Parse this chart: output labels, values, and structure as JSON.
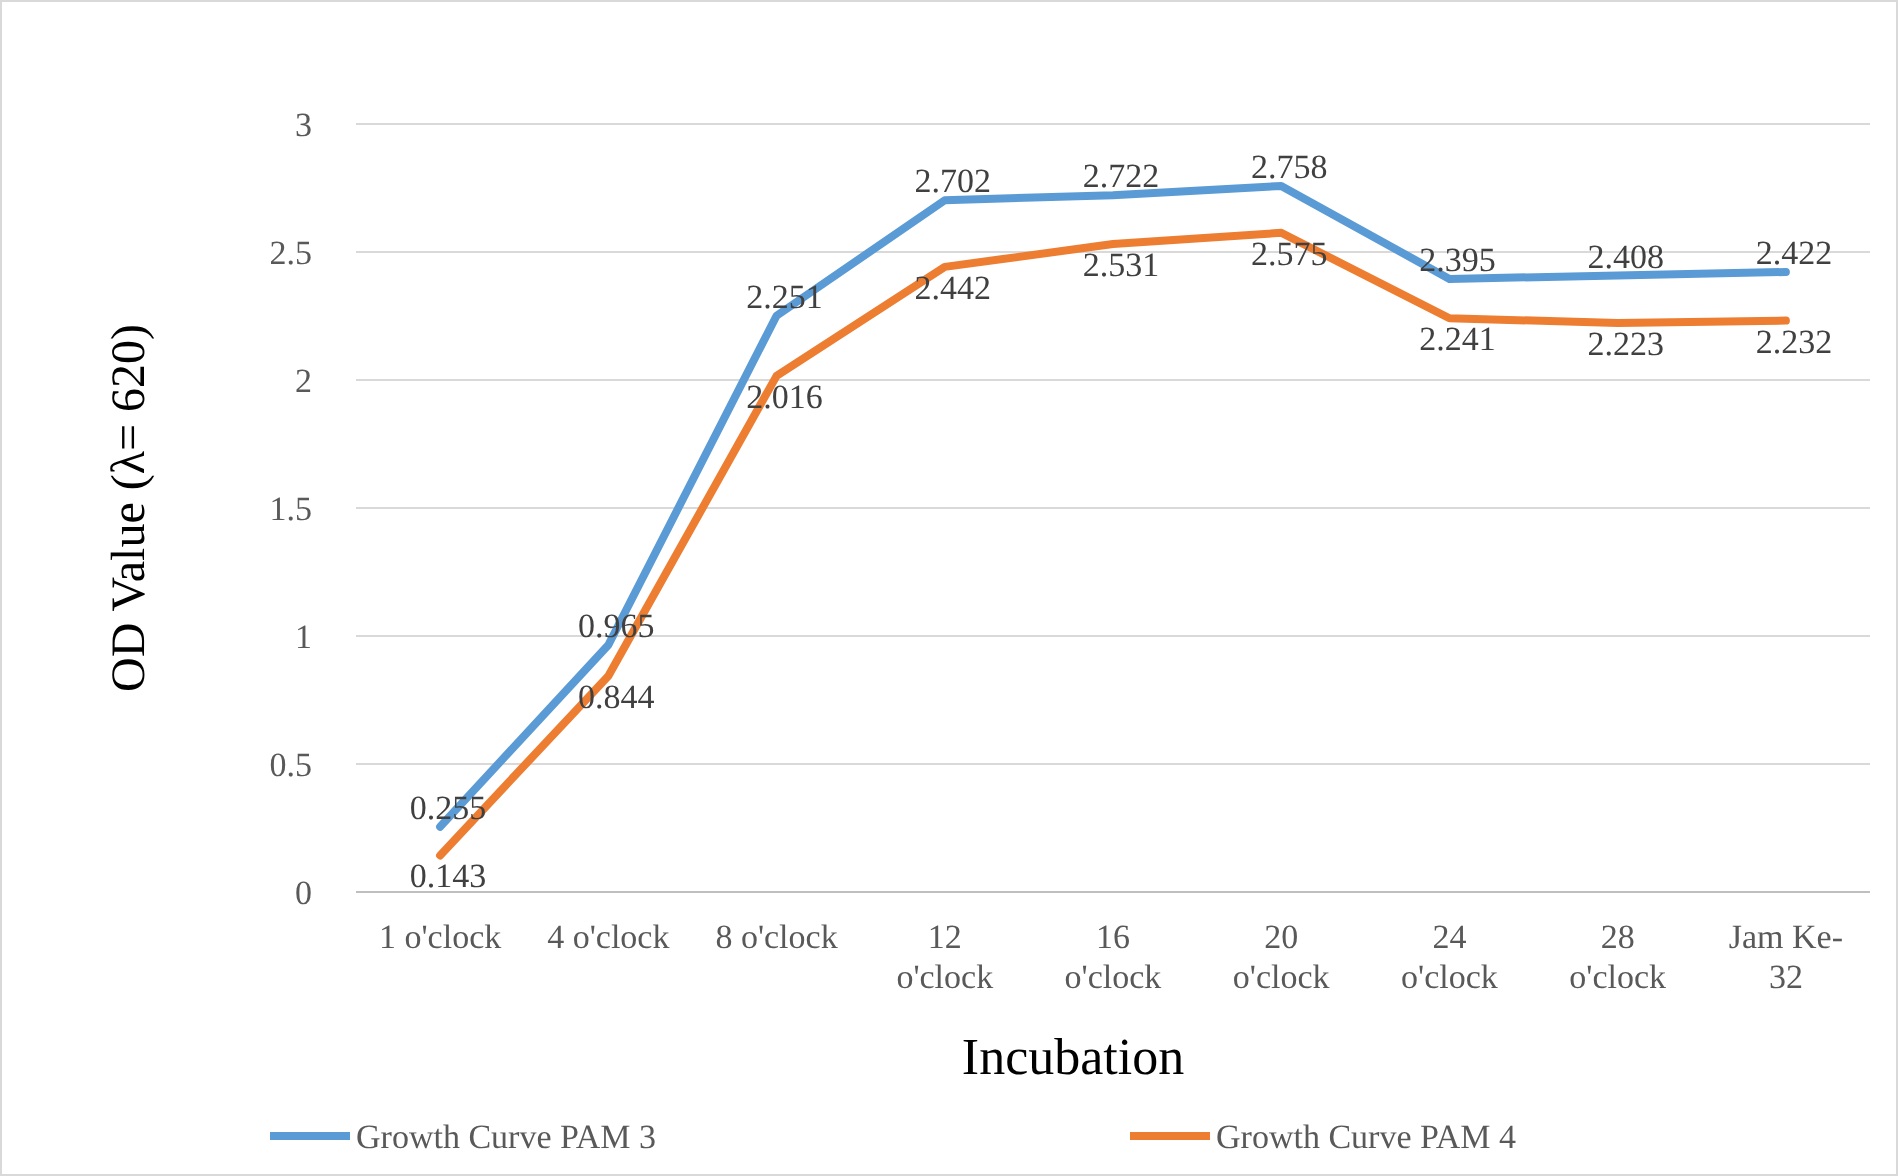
{
  "chart_data": {
    "type": "line",
    "xlabel": "Incubation",
    "ylabel": "OD Value  (λ= 620)",
    "categories": [
      "1 o'clock",
      "4 o'clock",
      "8 o'clock",
      "12 o'clock",
      "16 o'clock",
      "20 o'clock",
      "24 o'clock",
      "28 o'clock",
      "Jam Ke-32"
    ],
    "series": [
      {
        "name": "Growth Curve PAM 3",
        "color": "#5b9bd5",
        "values": [
          0.255,
          0.965,
          2.251,
          2.702,
          2.722,
          2.758,
          2.395,
          2.408,
          2.422
        ]
      },
      {
        "name": "Growth Curve PAM 4",
        "color": "#ed7d31",
        "values": [
          0.143,
          0.844,
          2.016,
          2.442,
          2.531,
          2.575,
          2.241,
          2.223,
          2.232
        ]
      }
    ],
    "ylim": [
      0,
      3
    ],
    "yticks": [
      0,
      0.5,
      1,
      1.5,
      2,
      2.5,
      3
    ],
    "grid": "y",
    "legend": "bottom",
    "data_labels": true,
    "marker": "none",
    "line_style": "solid"
  }
}
